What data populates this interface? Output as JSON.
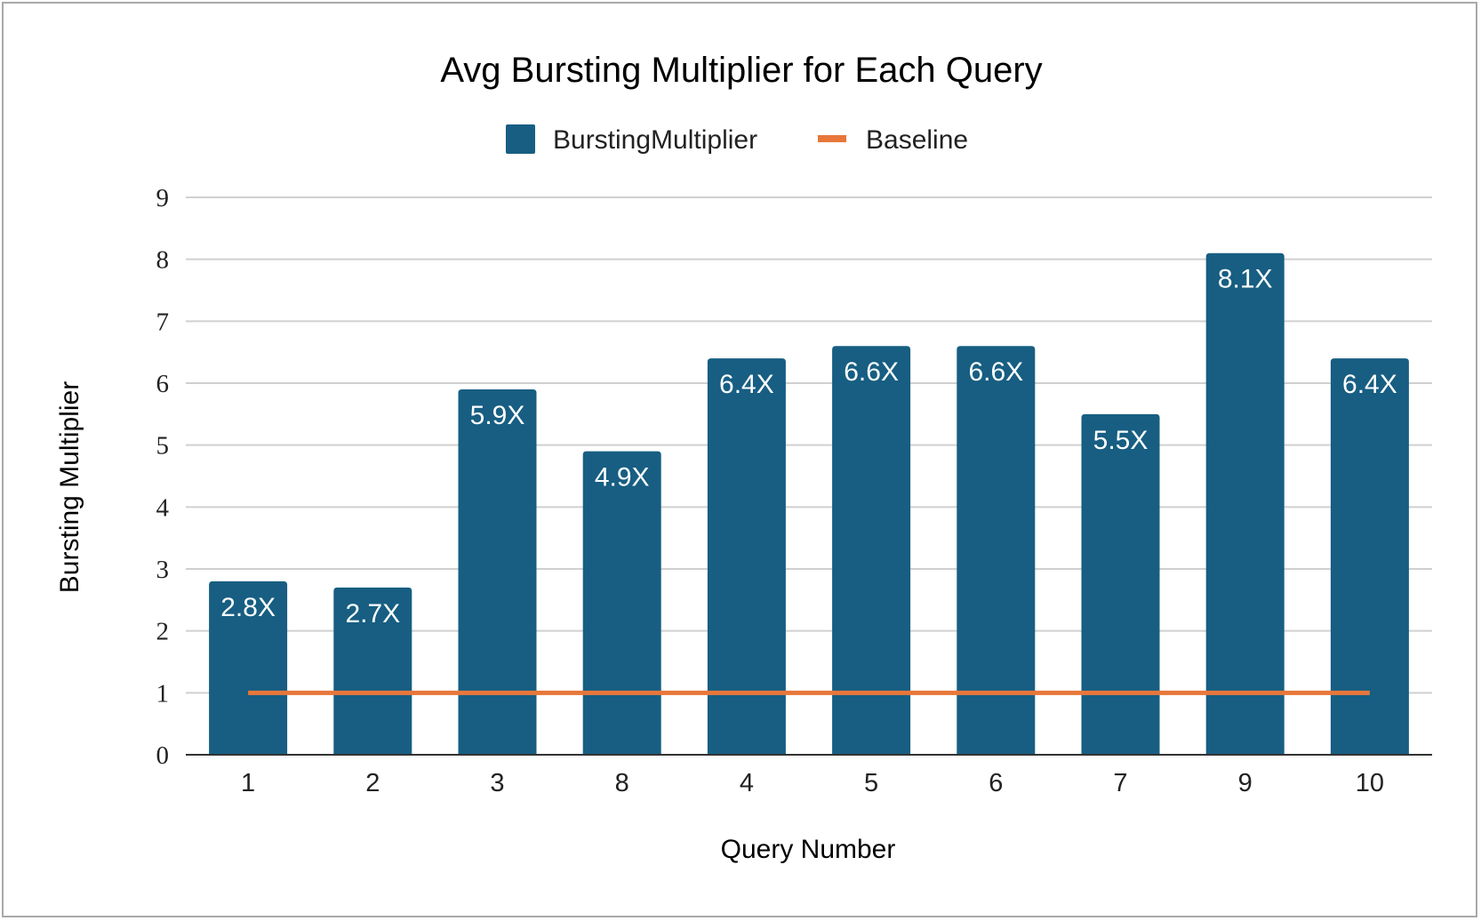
{
  "chart_data": {
    "type": "bar",
    "title": "Avg Bursting Multiplier for Each Query",
    "xlabel": "Query Number",
    "ylabel": "Bursting Multiplier",
    "ylim": [
      0,
      9
    ],
    "yticks": [
      0,
      1,
      2,
      3,
      4,
      5,
      6,
      7,
      8,
      9
    ],
    "grid": true,
    "legend_position": "top",
    "categories": [
      "1",
      "2",
      "3",
      "8",
      "4",
      "5",
      "6",
      "7",
      "9",
      "10"
    ],
    "series": [
      {
        "name": "BurstingMultiplier",
        "type": "bar",
        "color": "#175e82",
        "values": [
          2.8,
          2.7,
          5.9,
          4.9,
          6.4,
          6.6,
          6.6,
          5.5,
          8.1,
          6.4
        ],
        "labels": [
          "2.8X",
          "2.7X",
          "5.9X",
          "4.9X",
          "6.4X",
          "6.6X",
          "6.6X",
          "5.5X",
          "8.1X",
          "6.4X"
        ]
      },
      {
        "name": "Baseline",
        "type": "line",
        "color": "#e8773a",
        "values": [
          1,
          1,
          1,
          1,
          1,
          1,
          1,
          1,
          1,
          1
        ]
      }
    ]
  }
}
